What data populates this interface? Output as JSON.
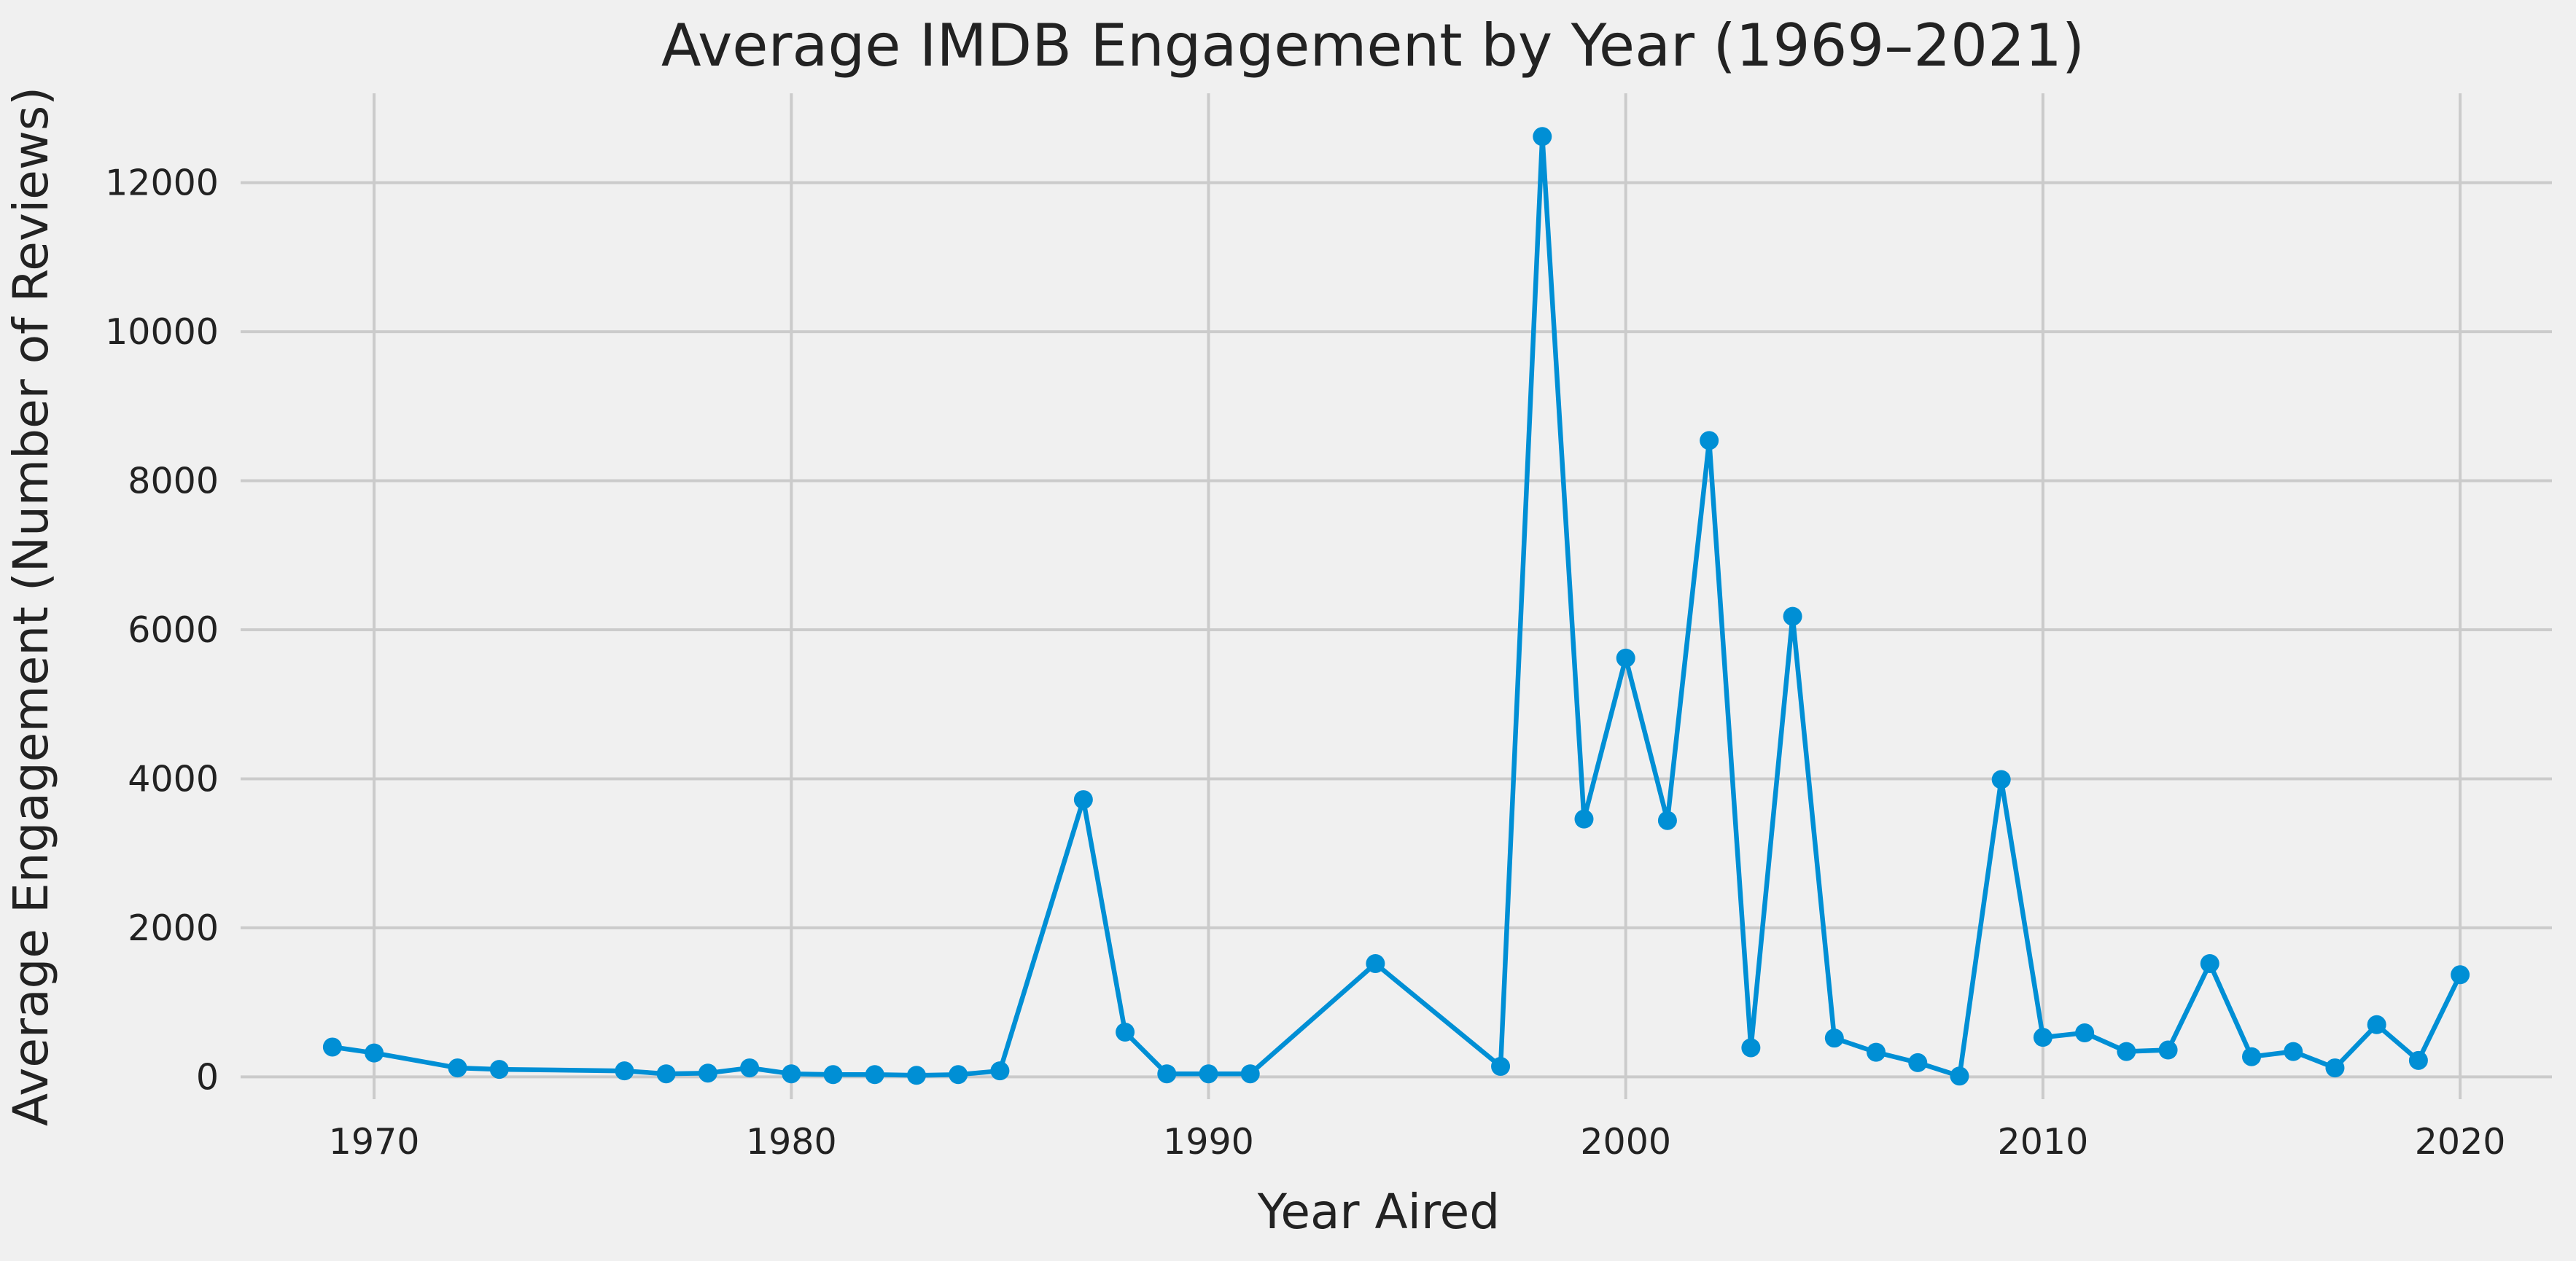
{
  "chart_data": {
    "type": "line",
    "title": "Average IMDB Engagement by Year (1969–2021)",
    "xlabel": "Year Aired",
    "ylabel": "Average Engagement (Number of Reviews)",
    "xlim": [
      1966.8,
      2022.2
    ],
    "ylim": [
      -300,
      13200
    ],
    "x_ticks": [
      1970,
      1980,
      1990,
      2000,
      2010,
      2020
    ],
    "y_ticks": [
      0,
      2000,
      4000,
      6000,
      8000,
      10000,
      12000
    ],
    "grid": true,
    "legend": "none",
    "series": [
      {
        "color": "#008fd5",
        "x": [
          1969,
          1970,
          1972,
          1973,
          1976,
          1977,
          1978,
          1979,
          1980,
          1981,
          1982,
          1983,
          1984,
          1985,
          1987,
          1988,
          1989,
          1990,
          1991,
          1994,
          1997,
          1998,
          1999,
          2000,
          2001,
          2002,
          2003,
          2004,
          2005,
          2006,
          2007,
          2008,
          2009,
          2010,
          2011,
          2012,
          2013,
          2014,
          2015,
          2016,
          2017,
          2018,
          2019,
          2020
        ],
        "y": [
          400,
          320,
          120,
          100,
          80,
          40,
          50,
          120,
          40,
          30,
          30,
          20,
          30,
          80,
          3720,
          600,
          40,
          40,
          40,
          1520,
          140,
          12620,
          3460,
          5620,
          3440,
          8540,
          390,
          6180,
          520,
          330,
          190,
          10,
          3990,
          530,
          590,
          340,
          360,
          1520,
          270,
          340,
          120,
          700,
          220,
          1370
        ]
      }
    ]
  },
  "colors": {
    "background": "#f0f0f0",
    "grid": "#cbcbcb",
    "line": "#008fd5",
    "text": "#222222"
  }
}
